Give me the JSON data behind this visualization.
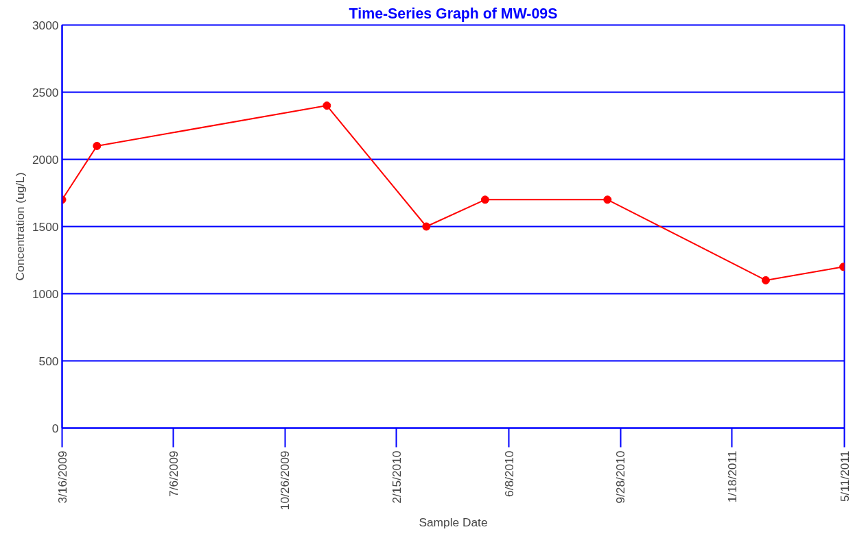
{
  "chart_data": {
    "type": "line",
    "title": "Time-Series Graph of MW-09S",
    "xlabel": "Sample Date",
    "ylabel": "Concentration (ug/L)",
    "x": [
      "2009-03-16",
      "2009-04-20",
      "2009-12-07",
      "2010-03-17",
      "2010-05-15",
      "2010-09-15",
      "2011-02-21",
      "2011-05-10"
    ],
    "series": [
      {
        "color": "#ff0000",
        "values": [
          1700,
          2100,
          2400,
          1500,
          1700,
          1700,
          1100,
          1200
        ]
      }
    ],
    "xlim": [
      "2009-03-16",
      "2011-05-11"
    ],
    "xticks": [
      {
        "value": "2009-03-16",
        "label": "3/16/2009"
      },
      {
        "value": "2009-07-06",
        "label": "7/6/2009"
      },
      {
        "value": "2009-10-26",
        "label": "10/26/2009"
      },
      {
        "value": "2010-02-15",
        "label": "2/15/2010"
      },
      {
        "value": "2010-06-08",
        "label": "6/8/2010"
      },
      {
        "value": "2010-09-28",
        "label": "9/28/2010"
      },
      {
        "value": "2011-01-18",
        "label": "1/18/2011"
      },
      {
        "value": "2011-05-11",
        "label": "5/11/2011"
      }
    ],
    "ylim": [
      0,
      3000
    ],
    "yticks": [
      0,
      500,
      1000,
      1500,
      2000,
      2500,
      3000
    ],
    "grid": "y",
    "marker": "circle",
    "line_style": "solid"
  }
}
